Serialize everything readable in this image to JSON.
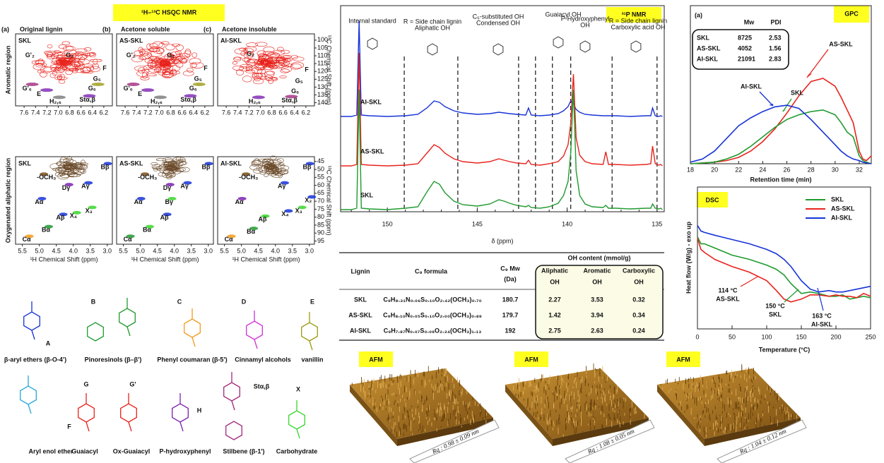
{
  "hsqc": {
    "title": "¹H–¹³C HSQC NMR",
    "aromatic_region": "Aromatic region",
    "aliphatic_region": "Oxygenated aliphatic region",
    "x_label": "¹H Chemical Shift (ppm)",
    "y_label": "¹³C Chemical Shift (ppm)",
    "aromatic_xlim": [
      7.75,
      6.05
    ],
    "aromatic_xticks": [
      7.6,
      7.4,
      7.2,
      {
        "value": 7,
        "label": "7.0"
      },
      6.8,
      6.6,
      6.4,
      6.2
    ],
    "aromatic_ylim": [
      96,
      142
    ],
    "aromatic_yticks": [
      100,
      105,
      110,
      115,
      120,
      125,
      130,
      135,
      140
    ],
    "aliphatic_xlim": [
      5.7,
      2.85
    ],
    "aliphatic_xticks": [
      5.5,
      {
        "value": 5,
        "label": "5.0"
      },
      4.5,
      {
        "value": 4,
        "label": "4.0"
      },
      3.5,
      {
        "value": 3,
        "label": "3.0"
      }
    ],
    "aliphatic_ylim": [
      42,
      97
    ],
    "aliphatic_yticks": [
      45,
      50,
      55,
      60,
      65,
      70,
      75,
      80,
      85,
      90,
      95
    ],
    "panels": [
      {
        "letter": "(a)",
        "name": "Original lignin",
        "sample": "SKL",
        "color": "#1f9a2e",
        "aromatic_labels": [
          "G'₂",
          "G₂",
          "F",
          "G₅",
          "G'₆",
          "E",
          "G₆",
          "Stα,β",
          "H₂,₆"
        ],
        "aliphatic_labels": [
          "Bβ",
          "-OCH₃",
          "Aγ",
          "Dγ",
          "Aα",
          "X₃",
          "Aβ",
          "X₄",
          "Bα",
          "Cα"
        ]
      },
      {
        "letter": "(b)",
        "name": "Acetone soluble",
        "sample": "AS-SKL",
        "color": "#e8231c",
        "aromatic_labels": [
          "G'₂",
          "G₂",
          "F",
          "G₅",
          "G'₆",
          "E",
          "G₆",
          "Stα,β",
          "H₂,₆"
        ],
        "aliphatic_labels": [
          "Bβ",
          "-OCH₃",
          "Aγ",
          "Dγ",
          "Aα",
          "Bγ",
          "Aβ",
          "Bα",
          "Cα"
        ]
      },
      {
        "letter": "(c)",
        "name": "Acetone insoluble",
        "sample": "AI-SKL",
        "color": "#1733d6",
        "aromatic_labels": [
          "G₂",
          "F",
          "G₅",
          "G₆",
          "Stα,β",
          "H₂,₆"
        ],
        "aliphatic_labels": [
          "Bβ",
          "-OCH₃",
          "Aγ",
          "Aα",
          "X₂",
          "X₃",
          "X₄",
          "Aβ",
          "Bα",
          "Cα"
        ]
      }
    ]
  },
  "structures": [
    {
      "letter": "A",
      "caption": "β-aryl ethers (β-O-4')",
      "color": "#1733d6"
    },
    {
      "letter": "B",
      "caption": "Pinoresinols (β–β')",
      "color": "#1f9a2e"
    },
    {
      "letter": "C",
      "caption": "Phenyl coumaran (β-5')",
      "color": "#f39a1b"
    },
    {
      "letter": "D",
      "caption": "Cinnamyl alcohols",
      "color": "#d030d8"
    },
    {
      "letter": "E",
      "caption": "vanillin",
      "color": "#9a9a12"
    },
    {
      "letter": "F",
      "caption": "Aryl enol ether",
      "color": "#2aa7d6"
    },
    {
      "letter": "G",
      "caption": "Guaiacyl",
      "color": "#e8231c"
    },
    {
      "letter": "G'",
      "caption": "Ox-Guaiacyl",
      "color": "#e8231c"
    },
    {
      "letter": "H",
      "caption": "P-hydroxyphenyl",
      "color": "#7a22b0"
    },
    {
      "letter": "Stα,β",
      "caption": "Stilbene (β-1')",
      "color": "#a0287d"
    },
    {
      "letter": "X",
      "caption": "Carbohydrate",
      "color": "#39d62c"
    }
  ],
  "chart_data": [
    {
      "type": "line",
      "title": "³¹P NMR",
      "x_label": "δ (ppm)",
      "xlim": [
        152.6,
        134.6
      ],
      "xticks": [
        150,
        145,
        140,
        135
      ],
      "x": [
        152.6,
        152.0,
        151.7,
        151.57,
        151.45,
        151.0,
        150.0,
        149.0,
        148.3,
        147.8,
        147.4,
        147.1,
        146.8,
        146.3,
        145.8,
        145.0,
        144.3,
        143.8,
        143.5,
        143.2,
        142.8,
        142.3,
        142.15,
        142.0,
        141.5,
        141.0,
        140.5,
        140.2,
        139.95,
        139.8,
        139.65,
        139.5,
        139.3,
        139.0,
        138.6,
        138.0,
        137.85,
        137.7,
        137.3,
        136.5,
        135.6,
        135.35,
        135.25,
        135.1,
        134.9,
        134.8,
        134.7
      ],
      "series": [
        {
          "name": "AI-SKL",
          "color": "#1733d6",
          "values": [
            0,
            0,
            2,
            135,
            2,
            1,
            0,
            1,
            3,
            12,
            22,
            20,
            14,
            8,
            5,
            3,
            4,
            6,
            5,
            4,
            3,
            2,
            12,
            2,
            1,
            2,
            4,
            8,
            14,
            22,
            18,
            10,
            6,
            3,
            2,
            1,
            1,
            1,
            1,
            0,
            1,
            1,
            12,
            1,
            0,
            1,
            0
          ]
        },
        {
          "name": "AS-SKL",
          "color": "#e8231c",
          "values": [
            0,
            0,
            2,
            160,
            2,
            1,
            0,
            1,
            3,
            18,
            30,
            26,
            18,
            10,
            6,
            4,
            6,
            10,
            8,
            6,
            4,
            3,
            8,
            2,
            1,
            3,
            6,
            14,
            30,
            60,
            130,
            40,
            15,
            6,
            3,
            2,
            20,
            2,
            2,
            1,
            2,
            3,
            28,
            3,
            1,
            2,
            0
          ]
        },
        {
          "name": "SKL",
          "color": "#1f9a2e",
          "values": [
            0,
            0,
            2,
            170,
            2,
            1,
            0,
            2,
            4,
            25,
            40,
            36,
            24,
            12,
            7,
            5,
            8,
            14,
            12,
            9,
            6,
            4,
            6,
            3,
            2,
            4,
            9,
            20,
            40,
            80,
            170,
            55,
            20,
            8,
            4,
            3,
            6,
            2,
            2,
            1,
            2,
            2,
            8,
            2,
            1,
            2,
            0
          ]
        }
      ],
      "region_lines": [
        149.06,
        146.08,
        142.7,
        141.76,
        140.82,
        139.8,
        137.5,
        135.0
      ],
      "annotations": [
        "Internal standard",
        "R = Side chain lignin",
        "Aliphatic OH",
        "C₅-substituted OH",
        "Condensed OH",
        "Guaiacyl OH",
        "P-Hydroxyphenyl",
        "OH",
        "R = Side chain lignin",
        "Carboxylic acid OH"
      ]
    },
    {
      "type": "line",
      "title": "GPC",
      "panel": "(a)",
      "x_label": "Retention time (min)",
      "xlim": [
        18,
        33
      ],
      "xticks": [
        18,
        20,
        22,
        24,
        26,
        28,
        30,
        32
      ],
      "ylim": [
        0,
        1
      ],
      "x": [
        18,
        19,
        20,
        21,
        22,
        23,
        24,
        25,
        26,
        27,
        28,
        29,
        30,
        30.5,
        31,
        31.5,
        32,
        32.3,
        32.6,
        33
      ],
      "series": [
        {
          "name": "AS-SKL",
          "color": "#e8231c",
          "values": [
            0,
            0.005,
            0.01,
            0.02,
            0.04,
            0.08,
            0.14,
            0.22,
            0.32,
            0.43,
            0.52,
            0.54,
            0.49,
            0.42,
            0.34,
            0.26,
            0.08,
            0.03,
            0.02,
            0.05
          ]
        },
        {
          "name": "SKL",
          "color": "#1f9a2e",
          "values": [
            0,
            0.005,
            0.01,
            0.03,
            0.06,
            0.11,
            0.17,
            0.23,
            0.28,
            0.31,
            0.33,
            0.34,
            0.31,
            0.26,
            0.2,
            0.17,
            0.05,
            0.02,
            0.01,
            0
          ]
        },
        {
          "name": "AI-SKL",
          "color": "#1733d6",
          "values": [
            0.01,
            0.03,
            0.08,
            0.16,
            0.24,
            0.29,
            0.33,
            0.36,
            0.37,
            0.35,
            0.28,
            0.2,
            0.12,
            0.08,
            0.05,
            0.03,
            0.02,
            0.01,
            0.005,
            0
          ]
        }
      ],
      "table": {
        "header": [
          "Mw",
          "PDI"
        ],
        "rows": [
          [
            "SKL",
            8725,
            2.53
          ],
          [
            "AS-SKL",
            4052,
            1.56
          ],
          [
            "AI-SKL",
            21091,
            2.83
          ]
        ]
      }
    },
    {
      "type": "line",
      "title": "DSC",
      "x_label": "Temperature (°C)",
      "y_label": "Heat flow (W/g) - exo up",
      "xlim": [
        0,
        250
      ],
      "xticks": [
        0,
        50,
        100,
        150,
        200,
        250
      ],
      "ylim": [
        0,
        10
      ],
      "x": [
        0,
        5,
        10,
        25,
        50,
        75,
        100,
        114,
        125,
        135,
        150,
        163,
        175,
        190,
        200,
        210,
        220,
        230,
        240,
        250
      ],
      "series": [
        {
          "name": "SKL",
          "color": "#1f9a2e",
          "values": [
            6.5,
            6.0,
            6.0,
            5.7,
            5.2,
            4.9,
            4.5,
            4.2,
            3.8,
            3.2,
            2.5,
            2.6,
            2.5,
            2.3,
            2.3,
            2.4,
            2.1,
            2.2,
            2.3,
            2.2
          ]
        },
        {
          "name": "AS-SKL",
          "color": "#e8231c",
          "values": [
            6.4,
            5.6,
            5.4,
            4.9,
            4.4,
            4.0,
            3.4,
            2.7,
            2.1,
            1.9,
            2.1,
            2.4,
            2.4,
            2.3,
            2.4,
            2.3,
            2.3,
            2.2,
            2.5,
            2.3
          ]
        },
        {
          "name": "AI-SKL",
          "color": "#1733d6",
          "values": [
            7.3,
            6.9,
            6.8,
            6.6,
            6.3,
            6.0,
            5.6,
            5.3,
            4.9,
            4.4,
            3.4,
            2.8,
            2.6,
            2.7,
            2.6,
            2.6,
            2.7,
            2.8,
            2.9,
            3.0
          ]
        }
      ],
      "annotations": [
        "114 °C",
        "AS-SKL",
        "150 °C",
        "SKL",
        "163 °C",
        "AI-SKL"
      ]
    }
  ],
  "table": {
    "header": [
      "Lignin",
      "C₉ formula",
      "C₉ Mw",
      "(Da)",
      "OH content (mmol/g)",
      "Aliphatic",
      "Aromatic",
      "Carboxylic",
      "OH",
      "OH",
      "OH"
    ],
    "rows": [
      [
        "SKL",
        "C₉H₈.₃₁N₀.₀₆S₀.₁₀O₂.₄₂(OCH₃)₀.₇₀",
        180.7,
        2.27,
        3.53,
        0.32
      ],
      [
        "AS-SKL",
        "C₉H₈.₁₀N₀.₀₅S₀.₁₀O₂.₀₀(OCH₃)₀.₈₉",
        179.7,
        1.42,
        3.94,
        0.34
      ],
      [
        "AI-SKL",
        "C₉H₇.₈₇N₀.₀₇S₀.₀₉O₂.₃₄(OCH₃)₁.₁₃",
        192.0,
        2.75,
        2.63,
        0.24
      ]
    ],
    "row_colors": [
      "#1f9a2e",
      "#e8231c",
      "#1733d6"
    ]
  },
  "afm": {
    "label": "AFM",
    "images": [
      "Rq : 0.98 ± 0.09 nm",
      "Rq : 1.08 ± 0.05 nm",
      "Rq : 1.04 ± 0.12 nm"
    ]
  }
}
